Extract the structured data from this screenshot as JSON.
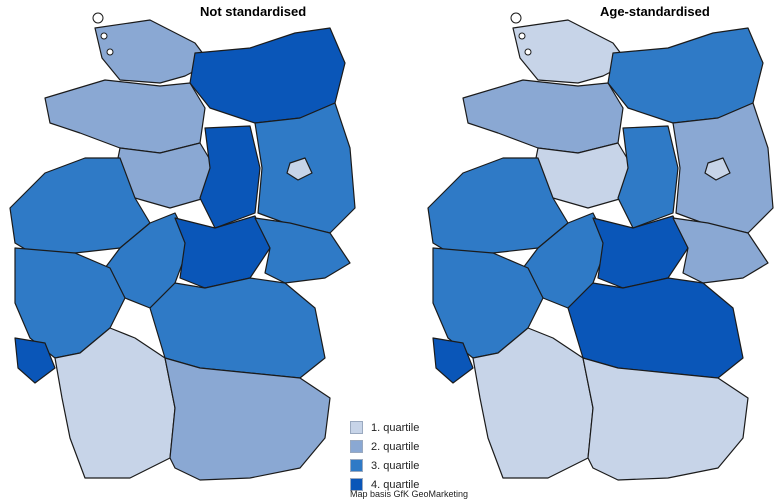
{
  "titles": {
    "left": "Not standardised",
    "right": "Age-standardised"
  },
  "legend": [
    {
      "label": "1. quartile",
      "color": "#c7d4e8"
    },
    {
      "label": "2. quartile",
      "color": "#8aa8d3"
    },
    {
      "label": "3. quartile",
      "color": "#2f7ac6"
    },
    {
      "label": "4. quartile",
      "color": "#0a56b8"
    }
  ],
  "credit": "Map basis GfK GeoMarketing",
  "maps": [
    {
      "name": "not-standardised",
      "regions": [
        {
          "name": "schleswig-holstein",
          "quartile": 2
        },
        {
          "name": "mecklenburg-vorpommern",
          "quartile": 4
        },
        {
          "name": "lower-saxony-north",
          "quartile": 2
        },
        {
          "name": "lower-saxony-south",
          "quartile": 2
        },
        {
          "name": "saxony-anhalt",
          "quartile": 4
        },
        {
          "name": "brandenburg",
          "quartile": 3
        },
        {
          "name": "berlin",
          "quartile": 1
        },
        {
          "name": "north-rhine-westphalia",
          "quartile": 3
        },
        {
          "name": "hesse",
          "quartile": 3
        },
        {
          "name": "thuringia",
          "quartile": 4
        },
        {
          "name": "saxony",
          "quartile": 3
        },
        {
          "name": "rhineland-palatinate",
          "quartile": 3
        },
        {
          "name": "saarland",
          "quartile": 4
        },
        {
          "name": "baden-wuerttemberg",
          "quartile": 1
        },
        {
          "name": "bavaria-north",
          "quartile": 3
        },
        {
          "name": "bavaria-south",
          "quartile": 2
        }
      ]
    },
    {
      "name": "age-standardised",
      "regions": [
        {
          "name": "schleswig-holstein",
          "quartile": 1
        },
        {
          "name": "mecklenburg-vorpommern",
          "quartile": 3
        },
        {
          "name": "lower-saxony-north",
          "quartile": 2
        },
        {
          "name": "lower-saxony-south",
          "quartile": 1
        },
        {
          "name": "saxony-anhalt",
          "quartile": 3
        },
        {
          "name": "brandenburg",
          "quartile": 2
        },
        {
          "name": "berlin",
          "quartile": 1
        },
        {
          "name": "north-rhine-westphalia",
          "quartile": 3
        },
        {
          "name": "hesse",
          "quartile": 3
        },
        {
          "name": "thuringia",
          "quartile": 4
        },
        {
          "name": "saxony",
          "quartile": 2
        },
        {
          "name": "rhineland-palatinate",
          "quartile": 3
        },
        {
          "name": "saarland",
          "quartile": 4
        },
        {
          "name": "baden-wuerttemberg",
          "quartile": 1
        },
        {
          "name": "bavaria-north",
          "quartile": 4
        },
        {
          "name": "bavaria-south",
          "quartile": 1
        }
      ]
    }
  ]
}
